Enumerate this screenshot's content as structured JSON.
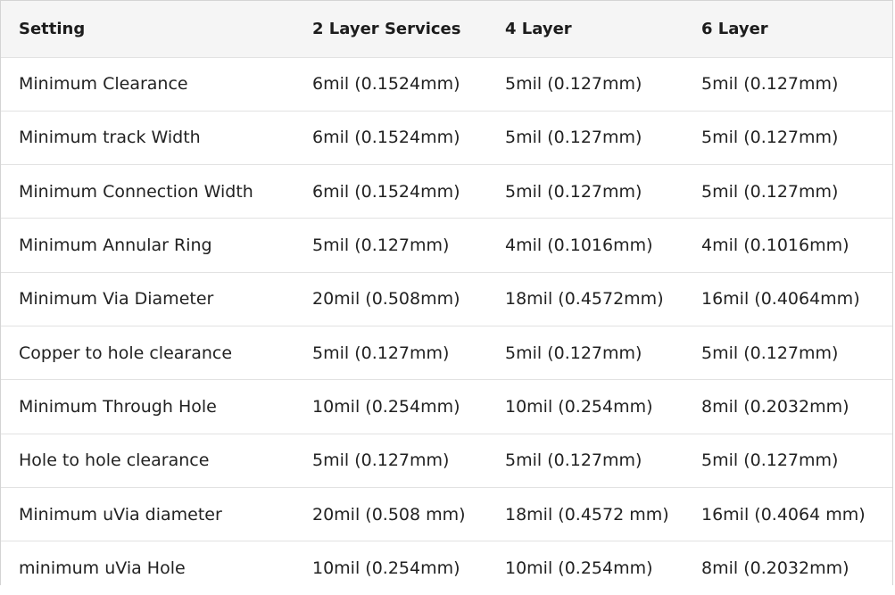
{
  "table": {
    "headers": [
      "Setting",
      "2 Layer Services",
      "4 Layer",
      "6 Layer"
    ],
    "rows": [
      [
        "Minimum Clearance",
        "6mil (0.1524mm)",
        "5mil (0.127mm)",
        "5mil (0.127mm)"
      ],
      [
        "Minimum track Width",
        "6mil (0.1524mm)",
        "5mil (0.127mm)",
        "5mil (0.127mm)"
      ],
      [
        "Minimum Connection Width",
        "6mil (0.1524mm)",
        "5mil (0.127mm)",
        "5mil (0.127mm)"
      ],
      [
        "Minimum Annular Ring",
        "5mil (0.127mm)",
        "4mil (0.1016mm)",
        "4mil (0.1016mm)"
      ],
      [
        "Minimum Via Diameter",
        "20mil (0.508mm)",
        "18mil (0.4572mm)",
        "16mil (0.4064mm)"
      ],
      [
        "Copper to hole clearance",
        "5mil (0.127mm)",
        "5mil (0.127mm)",
        "5mil (0.127mm)"
      ],
      [
        "Minimum Through Hole",
        "10mil (0.254mm)",
        "10mil (0.254mm)",
        "8mil (0.2032mm)"
      ],
      [
        "Hole to hole clearance",
        "5mil (0.127mm)",
        "5mil (0.127mm)",
        "5mil (0.127mm)"
      ],
      [
        "Minimum uVia diameter",
        "20mil (0.508 mm)",
        "18mil (0.4572 mm)",
        "16mil (0.4064 mm)"
      ],
      [
        "minimum uVia Hole",
        "10mil (0.254mm)",
        "10mil (0.254mm)",
        "8mil (0.2032mm)"
      ]
    ]
  },
  "colors": {
    "header_background": "#f5f5f5",
    "row_divider": "#e2e2e2",
    "outer_border": "#d4d4d4"
  }
}
